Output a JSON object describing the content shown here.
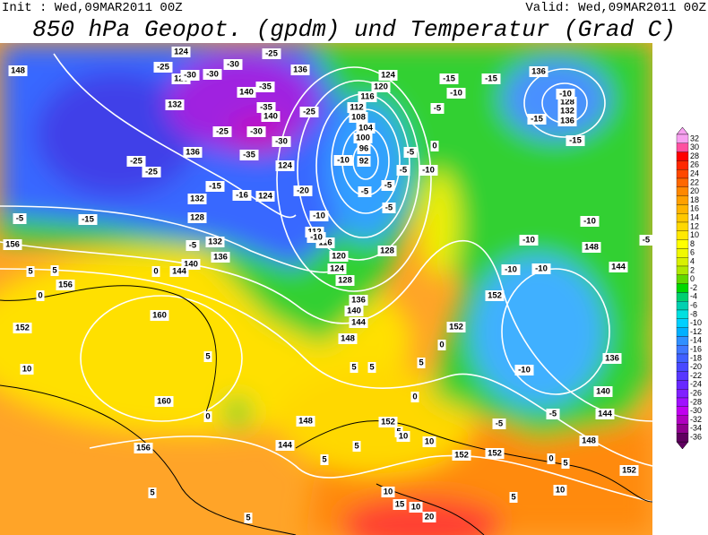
{
  "header": {
    "init": "Init : Wed,09MAR2011 00Z",
    "valid": "Valid: Wed,09MAR2011 00Z",
    "title": "850 hPa Geopot. (gpdm) und Temperatur (Grad C)"
  },
  "colorbar": {
    "labels": [
      "32",
      "30",
      "28",
      "26",
      "24",
      "22",
      "20",
      "18",
      "16",
      "14",
      "12",
      "10",
      "8",
      "6",
      "4",
      "2",
      "0",
      "-2",
      "-4",
      "-6",
      "-8",
      "-10",
      "-12",
      "-14",
      "-16",
      "-18",
      "-20",
      "-22",
      "-24",
      "-26",
      "-28",
      "-30",
      "-32",
      "-34",
      "-36"
    ],
    "colors": [
      "#f7a0f0",
      "#ff50a0",
      "#ff0000",
      "#ff2800",
      "#ff4800",
      "#ff6800",
      "#ff8800",
      "#ffa000",
      "#ffb400",
      "#ffc800",
      "#ffd800",
      "#ffe800",
      "#ffff00",
      "#f0f800",
      "#d8f000",
      "#b0e800",
      "#60d800",
      "#00d800",
      "#00d070",
      "#00d0b0",
      "#00e0e0",
      "#00d0ff",
      "#00b0ff",
      "#3090ff",
      "#4078ff",
      "#4060ff",
      "#4848ff",
      "#5838ff",
      "#6828ff",
      "#8020ff",
      "#a010ff",
      "#c000f0",
      "#b000c0",
      "#900090",
      "#600060"
    ]
  },
  "map": {
    "geopotential_labels": [
      "148",
      "124",
      "128",
      "132",
      "136",
      "140",
      "140",
      "124",
      "124",
      "132",
      "128",
      "132",
      "136",
      "140",
      "144",
      "156",
      "156",
      "152",
      "160",
      "160",
      "156",
      "144",
      "148",
      "152",
      "152",
      "152",
      "152",
      "148",
      "144",
      "140",
      "136",
      "152",
      "152",
      "148",
      "144",
      "136",
      "136",
      "132",
      "128",
      "124",
      "120",
      "116",
      "112",
      "108",
      "104",
      "100",
      "96",
      "92",
      "116",
      "112",
      "120",
      "124",
      "128",
      "136",
      "140",
      "144",
      "148",
      "128",
      "136"
    ],
    "temperature_labels": [
      "-25",
      "-30",
      "-30",
      "-30",
      "-25",
      "-35",
      "-35",
      "-30",
      "-30",
      "-25",
      "-25",
      "-35",
      "-25",
      "-25",
      "-15",
      "-16",
      "-20",
      "-10",
      "-10",
      "-10",
      "-5",
      "-5",
      "-5",
      "-5",
      "-5",
      "0",
      "-10",
      "-15",
      "-10",
      "-15",
      "-10",
      "-15",
      "-15",
      "-10",
      "-10",
      "-10",
      "-10",
      "-10",
      "-5",
      "-5",
      "-5",
      "-5",
      "-5",
      "-5",
      "-15",
      "5",
      "5",
      "0",
      "10",
      "5",
      "0",
      "5",
      "5",
      "0",
      "5",
      "5",
      "10",
      "10",
      "5",
      "5",
      "0",
      "5",
      "10",
      "10",
      "10",
      "15",
      "20",
      "5",
      "5",
      "0",
      "0",
      "5"
    ]
  }
}
